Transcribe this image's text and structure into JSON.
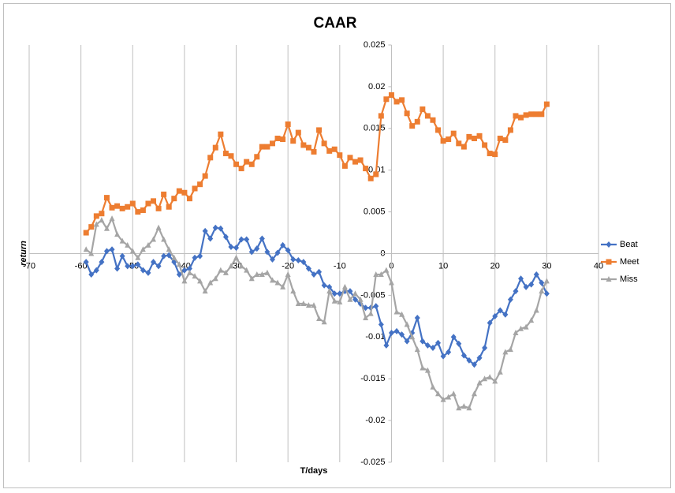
{
  "chart_data": {
    "type": "scatter-line",
    "title": "CAAR",
    "x_label": "T/days",
    "y_label": "return",
    "x": [
      -59,
      -58,
      -57,
      -56,
      -55,
      -54,
      -53,
      -52,
      -51,
      -50,
      -49,
      -48,
      -47,
      -46,
      -45,
      -44,
      -43,
      -42,
      -41,
      -40,
      -39,
      -38,
      -37,
      -36,
      -35,
      -34,
      -33,
      -32,
      -31,
      -30,
      -29,
      -28,
      -27,
      -26,
      -25,
      -24,
      -23,
      -22,
      -21,
      -20,
      -19,
      -18,
      -17,
      -16,
      -15,
      -14,
      -13,
      -12,
      -11,
      -10,
      -9,
      -8,
      -7,
      -6,
      -5,
      -4,
      -3,
      -2,
      -1,
      0,
      1,
      2,
      3,
      4,
      5,
      6,
      7,
      8,
      9,
      10,
      11,
      12,
      13,
      14,
      15,
      16,
      17,
      18,
      19,
      20,
      21,
      22,
      23,
      24,
      25,
      26,
      27,
      28,
      29,
      30
    ],
    "series": [
      {
        "name": "Beat",
        "color": "#4472c4",
        "marker": "diamond",
        "values": [
          -0.001,
          -0.0025,
          -0.002,
          -0.001,
          0.0003,
          0.0005,
          -0.0018,
          -0.0003,
          -0.0015,
          -0.0015,
          -0.0013,
          -0.002,
          -0.0023,
          -0.001,
          -0.0015,
          -0.0003,
          -0.0002,
          -0.001,
          -0.0025,
          -0.002,
          -0.0018,
          -0.0005,
          -0.0003,
          0.0027,
          0.0018,
          0.0031,
          0.003,
          0.002,
          0.0008,
          0.0007,
          0.0017,
          0.0017,
          0.0002,
          0.0006,
          0.0018,
          0.0002,
          -0.0007,
          0.0001,
          0.001,
          0.0004,
          -0.0007,
          -0.0008,
          -0.001,
          -0.0018,
          -0.0025,
          -0.0022,
          -0.0038,
          -0.004,
          -0.0048,
          -0.0048,
          -0.0045,
          -0.0045,
          -0.0055,
          -0.006,
          -0.0065,
          -0.0065,
          -0.0063,
          -0.0085,
          -0.011,
          -0.0095,
          -0.0093,
          -0.0097,
          -0.0105,
          -0.0095,
          -0.0077,
          -0.0105,
          -0.011,
          -0.0113,
          -0.0107,
          -0.0123,
          -0.0118,
          -0.01,
          -0.0108,
          -0.0122,
          -0.0128,
          -0.0133,
          -0.0125,
          -0.0113,
          -0.0083,
          -0.0075,
          -0.0068,
          -0.0073,
          -0.0055,
          -0.0045,
          -0.003,
          -0.004,
          -0.0037,
          -0.0025,
          -0.0035,
          -0.0048
        ]
      },
      {
        "name": "Meet",
        "color": "#ed7d31",
        "marker": "square",
        "values": [
          0.0025,
          0.0032,
          0.0045,
          0.0048,
          0.0067,
          0.0055,
          0.0057,
          0.0054,
          0.0056,
          0.006,
          0.005,
          0.0052,
          0.006,
          0.0063,
          0.0054,
          0.0071,
          0.0056,
          0.0066,
          0.0075,
          0.0073,
          0.0066,
          0.0078,
          0.0083,
          0.0093,
          0.0115,
          0.0127,
          0.0143,
          0.012,
          0.0117,
          0.0107,
          0.0102,
          0.011,
          0.0107,
          0.0116,
          0.0128,
          0.0128,
          0.0132,
          0.0138,
          0.0137,
          0.0155,
          0.0135,
          0.0145,
          0.013,
          0.0127,
          0.0122,
          0.0148,
          0.0132,
          0.0123,
          0.0125,
          0.0118,
          0.0105,
          0.0115,
          0.011,
          0.0112,
          0.0102,
          0.009,
          0.0095,
          0.0165,
          0.0185,
          0.019,
          0.0182,
          0.0184,
          0.0168,
          0.0153,
          0.0158,
          0.0173,
          0.0165,
          0.016,
          0.0148,
          0.0135,
          0.0137,
          0.0144,
          0.0132,
          0.0128,
          0.014,
          0.0138,
          0.0141,
          0.013,
          0.012,
          0.0119,
          0.0138,
          0.0136,
          0.0148,
          0.0165,
          0.0163,
          0.0166,
          0.0167,
          0.0167,
          0.0167,
          0.0179
        ]
      },
      {
        "name": "Miss",
        "color": "#a5a5a5",
        "marker": "triangle",
        "values": [
          0.0005,
          0,
          0.0035,
          0.004,
          0.003,
          0.0042,
          0.0023,
          0.0015,
          0.001,
          0.0003,
          -0.0005,
          0.0005,
          0.001,
          0.0017,
          0.0031,
          0.0017,
          0.0005,
          -0.0005,
          -0.0013,
          -0.0033,
          -0.0023,
          -0.0027,
          -0.0033,
          -0.0045,
          -0.0035,
          -0.003,
          -0.002,
          -0.0023,
          -0.0015,
          -0.0005,
          -0.0015,
          -0.002,
          -0.003,
          -0.0025,
          -0.0025,
          -0.0023,
          -0.0032,
          -0.0035,
          -0.004,
          -0.0025,
          -0.0045,
          -0.006,
          -0.006,
          -0.0062,
          -0.0062,
          -0.0078,
          -0.0082,
          -0.0045,
          -0.0057,
          -0.0058,
          -0.004,
          -0.0055,
          -0.0048,
          -0.0055,
          -0.0077,
          -0.0072,
          -0.0025,
          -0.0025,
          -0.002,
          -0.0035,
          -0.007,
          -0.0073,
          -0.0085,
          -0.01,
          -0.0115,
          -0.0137,
          -0.014,
          -0.016,
          -0.0168,
          -0.0175,
          -0.0172,
          -0.0168,
          -0.0185,
          -0.0183,
          -0.0185,
          -0.0168,
          -0.0155,
          -0.015,
          -0.0148,
          -0.0153,
          -0.0142,
          -0.0118,
          -0.0115,
          -0.0095,
          -0.009,
          -0.0088,
          -0.008,
          -0.0068,
          -0.0045,
          -0.0033
        ]
      }
    ],
    "xlim": [
      -70,
      40
    ],
    "xticks": [
      -70,
      -60,
      -50,
      -40,
      -30,
      -20,
      -10,
      0,
      10,
      20,
      30,
      40
    ],
    "ylim": [
      -0.025,
      0.025
    ],
    "yticks": [
      -0.025,
      -0.02,
      -0.015,
      -0.01,
      -0.005,
      0,
      0.005,
      0.01,
      0.015,
      0.02,
      0.025
    ],
    "grid": "vertical",
    "legend": "right"
  }
}
